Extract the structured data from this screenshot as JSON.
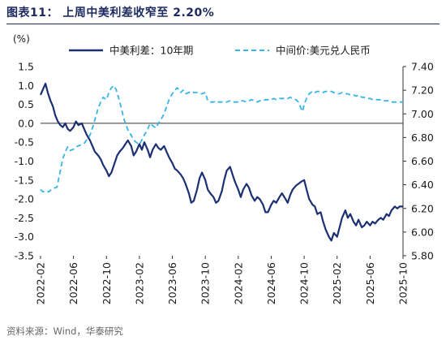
{
  "title": "图表11：  上周中美利差收窄至 2.20%",
  "source": "资料来源：Wind，华泰研究",
  "chart_data": {
    "type": "line",
    "unit_label_left": "(%)",
    "left_axis": {
      "min": -3.5,
      "max": 1.5,
      "ticks": [
        "1.5",
        "1.0",
        "0.5",
        "0.0",
        "-0.5",
        "-1.0",
        "-1.5",
        "-2.0",
        "-2.5",
        "-3.0",
        "-3.5"
      ]
    },
    "right_axis": {
      "min": 5.8,
      "max": 7.4,
      "ticks": [
        "7.40",
        "7.20",
        "7.00",
        "6.80",
        "6.60",
        "6.40",
        "6.20",
        "6.00",
        "5.80"
      ]
    },
    "x_ticks": [
      {
        "label": "2022-02",
        "t": 0
      },
      {
        "label": "2022-06",
        "t": 4
      },
      {
        "label": "2022-10",
        "t": 8
      },
      {
        "label": "2023-02",
        "t": 12
      },
      {
        "label": "2023-06",
        "t": 16
      },
      {
        "label": "2023-10",
        "t": 20
      },
      {
        "label": "2024-02",
        "t": 24
      },
      {
        "label": "2024-06",
        "t": 28
      },
      {
        "label": "2024-10",
        "t": 32
      },
      {
        "label": "2025-02",
        "t": 36
      },
      {
        "label": "2025-06",
        "t": 40
      },
      {
        "label": "2025-10",
        "t": 44
      }
    ],
    "series": [
      {
        "name": "中美利差：10年期",
        "axis": "left",
        "color": "#1b2f73",
        "style": "solid",
        "points": [
          [
            0,
            0.75
          ],
          [
            0.3,
            0.9
          ],
          [
            0.6,
            1.05
          ],
          [
            0.9,
            0.8
          ],
          [
            1.2,
            0.6
          ],
          [
            1.5,
            0.45
          ],
          [
            1.8,
            0.2
          ],
          [
            2.1,
            0.05
          ],
          [
            2.4,
            -0.05
          ],
          [
            2.7,
            -0.1
          ],
          [
            3.0,
            0.0
          ],
          [
            3.3,
            -0.15
          ],
          [
            3.6,
            -0.2
          ],
          [
            4.0,
            -0.1
          ],
          [
            4.3,
            0.05
          ],
          [
            4.6,
            -0.05
          ],
          [
            5.0,
            0.0
          ],
          [
            5.3,
            -0.15
          ],
          [
            5.6,
            -0.3
          ],
          [
            6.0,
            -0.45
          ],
          [
            6.3,
            -0.6
          ],
          [
            6.6,
            -0.75
          ],
          [
            7.0,
            -0.85
          ],
          [
            7.3,
            -0.95
          ],
          [
            7.6,
            -1.1
          ],
          [
            8.0,
            -1.25
          ],
          [
            8.3,
            -1.4
          ],
          [
            8.6,
            -1.3
          ],
          [
            9.0,
            -1.05
          ],
          [
            9.3,
            -0.85
          ],
          [
            9.6,
            -0.75
          ],
          [
            10.0,
            -0.65
          ],
          [
            10.3,
            -0.55
          ],
          [
            10.6,
            -0.45
          ],
          [
            11.0,
            -0.6
          ],
          [
            11.3,
            -0.85
          ],
          [
            11.6,
            -0.75
          ],
          [
            12.0,
            -0.55
          ],
          [
            12.3,
            -0.7
          ],
          [
            12.6,
            -0.5
          ],
          [
            13.0,
            -0.7
          ],
          [
            13.3,
            -0.9
          ],
          [
            13.6,
            -0.7
          ],
          [
            14.0,
            -0.55
          ],
          [
            14.3,
            -0.65
          ],
          [
            14.6,
            -0.7
          ],
          [
            15.0,
            -0.6
          ],
          [
            15.3,
            -0.75
          ],
          [
            15.6,
            -0.9
          ],
          [
            16.0,
            -1.05
          ],
          [
            16.3,
            -1.2
          ],
          [
            16.6,
            -1.25
          ],
          [
            17.0,
            -1.35
          ],
          [
            17.3,
            -1.45
          ],
          [
            17.6,
            -1.6
          ],
          [
            18.0,
            -1.85
          ],
          [
            18.3,
            -2.1
          ],
          [
            18.6,
            -2.05
          ],
          [
            19.0,
            -1.75
          ],
          [
            19.3,
            -1.45
          ],
          [
            19.6,
            -1.3
          ],
          [
            20.0,
            -1.5
          ],
          [
            20.3,
            -1.75
          ],
          [
            20.6,
            -1.85
          ],
          [
            21.0,
            -1.95
          ],
          [
            21.3,
            -2.1
          ],
          [
            21.6,
            -2.05
          ],
          [
            22.0,
            -1.8
          ],
          [
            22.3,
            -1.5
          ],
          [
            22.6,
            -1.25
          ],
          [
            23.0,
            -1.15
          ],
          [
            23.3,
            -1.35
          ],
          [
            23.6,
            -1.55
          ],
          [
            24.0,
            -1.75
          ],
          [
            24.3,
            -1.95
          ],
          [
            24.6,
            -1.75
          ],
          [
            25.0,
            -1.6
          ],
          [
            25.3,
            -1.7
          ],
          [
            25.6,
            -1.9
          ],
          [
            26.0,
            -2.05
          ],
          [
            26.3,
            -1.95
          ],
          [
            26.6,
            -2.0
          ],
          [
            27.0,
            -2.15
          ],
          [
            27.3,
            -2.35
          ],
          [
            27.6,
            -2.35
          ],
          [
            28.0,
            -2.15
          ],
          [
            28.3,
            -2.05
          ],
          [
            28.6,
            -2.1
          ],
          [
            29.0,
            -1.95
          ],
          [
            29.3,
            -1.85
          ],
          [
            29.6,
            -1.95
          ],
          [
            30.0,
            -2.1
          ],
          [
            30.3,
            -1.9
          ],
          [
            30.6,
            -1.75
          ],
          [
            31.0,
            -1.65
          ],
          [
            31.3,
            -1.6
          ],
          [
            31.6,
            -1.55
          ],
          [
            32.0,
            -1.5
          ],
          [
            32.3,
            -1.75
          ],
          [
            32.6,
            -2.0
          ],
          [
            33.0,
            -2.15
          ],
          [
            33.3,
            -2.2
          ],
          [
            33.6,
            -2.4
          ],
          [
            34.0,
            -2.35
          ],
          [
            34.3,
            -2.6
          ],
          [
            34.6,
            -2.8
          ],
          [
            35.0,
            -3.0
          ],
          [
            35.3,
            -3.1
          ],
          [
            35.6,
            -2.9
          ],
          [
            36.0,
            -3.0
          ],
          [
            36.3,
            -2.75
          ],
          [
            36.6,
            -2.5
          ],
          [
            37.0,
            -2.3
          ],
          [
            37.3,
            -2.5
          ],
          [
            37.6,
            -2.4
          ],
          [
            38.0,
            -2.6
          ],
          [
            38.3,
            -2.7
          ],
          [
            38.6,
            -2.55
          ],
          [
            39.0,
            -2.75
          ],
          [
            39.3,
            -2.7
          ],
          [
            39.6,
            -2.6
          ],
          [
            40.0,
            -2.7
          ],
          [
            40.3,
            -2.6
          ],
          [
            40.6,
            -2.65
          ],
          [
            41.0,
            -2.55
          ],
          [
            41.3,
            -2.5
          ],
          [
            41.6,
            -2.55
          ],
          [
            42.0,
            -2.4
          ],
          [
            42.3,
            -2.45
          ],
          [
            42.6,
            -2.3
          ],
          [
            43.0,
            -2.2
          ],
          [
            43.3,
            -2.25
          ],
          [
            43.6,
            -2.2
          ],
          [
            44.0,
            -2.2
          ]
        ]
      },
      {
        "name": "中间价:美元兑人民币",
        "axis": "right",
        "color": "#37b4e8",
        "style": "dashed",
        "points": [
          [
            0,
            6.36
          ],
          [
            0.3,
            6.34
          ],
          [
            0.6,
            6.35
          ],
          [
            1.0,
            6.34
          ],
          [
            1.3,
            6.36
          ],
          [
            1.6,
            6.37
          ],
          [
            2.0,
            6.38
          ],
          [
            2.2,
            6.45
          ],
          [
            2.5,
            6.55
          ],
          [
            2.7,
            6.62
          ],
          [
            3.0,
            6.68
          ],
          [
            3.3,
            6.72
          ],
          [
            3.6,
            6.69
          ],
          [
            4.0,
            6.7
          ],
          [
            4.3,
            6.72
          ],
          [
            4.6,
            6.73
          ],
          [
            5.0,
            6.74
          ],
          [
            5.3,
            6.75
          ],
          [
            5.6,
            6.78
          ],
          [
            6.0,
            6.82
          ],
          [
            6.3,
            6.88
          ],
          [
            6.6,
            6.95
          ],
          [
            7.0,
            7.05
          ],
          [
            7.3,
            7.1
          ],
          [
            7.6,
            7.14
          ],
          [
            8.0,
            7.12
          ],
          [
            8.3,
            7.18
          ],
          [
            8.6,
            7.22
          ],
          [
            8.9,
            7.24
          ],
          [
            9.2,
            7.2
          ],
          [
            9.5,
            7.13
          ],
          [
            9.8,
            7.05
          ],
          [
            10.1,
            6.96
          ],
          [
            10.4,
            6.9
          ],
          [
            10.7,
            6.85
          ],
          [
            11.0,
            6.82
          ],
          [
            11.3,
            6.78
          ],
          [
            11.6,
            6.76
          ],
          [
            12.0,
            6.74
          ],
          [
            12.3,
            6.78
          ],
          [
            12.6,
            6.82
          ],
          [
            13.0,
            6.87
          ],
          [
            13.3,
            6.92
          ],
          [
            13.6,
            6.9
          ],
          [
            14.0,
            6.88
          ],
          [
            14.3,
            6.92
          ],
          [
            14.6,
            6.95
          ],
          [
            15.0,
            7.0
          ],
          [
            15.3,
            7.06
          ],
          [
            15.6,
            7.12
          ],
          [
            16.0,
            7.17
          ],
          [
            16.3,
            7.2
          ],
          [
            16.6,
            7.22
          ],
          [
            17.0,
            7.18
          ],
          [
            17.3,
            7.2
          ],
          [
            17.6,
            7.17
          ],
          [
            18.0,
            7.18
          ],
          [
            18.3,
            7.19
          ],
          [
            18.6,
            7.18
          ],
          [
            19.0,
            7.18
          ],
          [
            19.3,
            7.17
          ],
          [
            19.6,
            7.17
          ],
          [
            20.0,
            7.18
          ],
          [
            20.3,
            7.11
          ],
          [
            20.6,
            7.1
          ],
          [
            21.0,
            7.1
          ],
          [
            21.3,
            7.11
          ],
          [
            21.6,
            7.1
          ],
          [
            22.0,
            7.1
          ],
          [
            22.3,
            7.1
          ],
          [
            22.6,
            7.1
          ],
          [
            23.0,
            7.11
          ],
          [
            23.3,
            7.1
          ],
          [
            23.6,
            7.1
          ],
          [
            24.0,
            7.1
          ],
          [
            24.3,
            7.11
          ],
          [
            24.6,
            7.11
          ],
          [
            25.0,
            7.1
          ],
          [
            25.3,
            7.11
          ],
          [
            25.6,
            7.12
          ],
          [
            26.0,
            7.11
          ],
          [
            26.3,
            7.1
          ],
          [
            26.6,
            7.11
          ],
          [
            27.0,
            7.11
          ],
          [
            27.3,
            7.12
          ],
          [
            27.6,
            7.12
          ],
          [
            28.0,
            7.12
          ],
          [
            28.3,
            7.13
          ],
          [
            28.6,
            7.12
          ],
          [
            29.0,
            7.13
          ],
          [
            29.3,
            7.13
          ],
          [
            29.6,
            7.13
          ],
          [
            30.0,
            7.13
          ],
          [
            30.3,
            7.14
          ],
          [
            30.6,
            7.13
          ],
          [
            31.0,
            7.12
          ],
          [
            31.3,
            7.1
          ],
          [
            31.6,
            7.05
          ],
          [
            31.8,
            7.02
          ],
          [
            32.0,
            7.08
          ],
          [
            32.3,
            7.13
          ],
          [
            32.6,
            7.17
          ],
          [
            33.0,
            7.19
          ],
          [
            33.3,
            7.18
          ],
          [
            33.6,
            7.19
          ],
          [
            34.0,
            7.19
          ],
          [
            34.3,
            7.18
          ],
          [
            34.6,
            7.19
          ],
          [
            35.0,
            7.19
          ],
          [
            35.3,
            7.19
          ],
          [
            35.6,
            7.18
          ],
          [
            36.0,
            7.17
          ],
          [
            36.3,
            7.17
          ],
          [
            36.6,
            7.18
          ],
          [
            37.0,
            7.17
          ],
          [
            37.3,
            7.17
          ],
          [
            37.6,
            7.16
          ],
          [
            38.0,
            7.16
          ],
          [
            38.3,
            7.15
          ],
          [
            38.6,
            7.16
          ],
          [
            39.0,
            7.14
          ],
          [
            39.3,
            7.14
          ],
          [
            39.6,
            7.13
          ],
          [
            40.0,
            7.13
          ],
          [
            40.3,
            7.12
          ],
          [
            40.6,
            7.12
          ],
          [
            41.0,
            7.12
          ],
          [
            41.3,
            7.12
          ],
          [
            41.6,
            7.11
          ],
          [
            42.0,
            7.11
          ],
          [
            42.3,
            7.11
          ],
          [
            42.6,
            7.1
          ],
          [
            43.0,
            7.1
          ],
          [
            43.3,
            7.1
          ],
          [
            43.6,
            7.1
          ],
          [
            44.0,
            7.1
          ]
        ]
      }
    ],
    "legend": "top"
  }
}
